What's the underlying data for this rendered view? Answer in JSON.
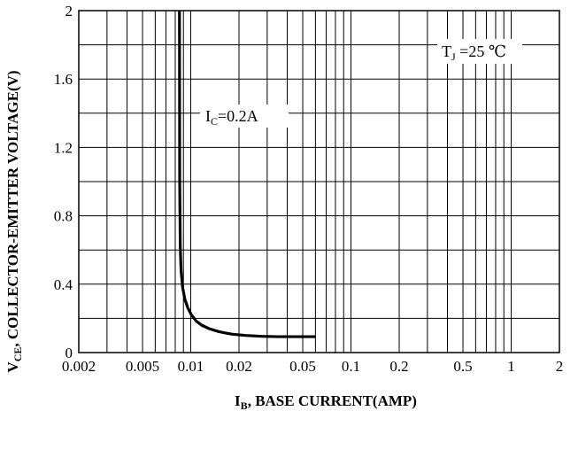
{
  "chart_data": {
    "type": "line",
    "title": "",
    "x_scale": "log",
    "y_scale": "linear",
    "xlim": [
      0.002,
      2
    ],
    "ylim": [
      0,
      2
    ],
    "grid": true,
    "legend": "none",
    "xlabel": {
      "main": "I",
      "sub": "B",
      "rest": ", BASE CURRENT(AMP)"
    },
    "ylabel": {
      "main": "V",
      "sub": "CE",
      "rest": ", COLLECTOR-EMITTER VOLTAGE(V)"
    },
    "x_ticks": [
      {
        "value": 0.002,
        "label": "0.002"
      },
      {
        "value": 0.005,
        "label": "0.005"
      },
      {
        "value": 0.01,
        "label": "0.01"
      },
      {
        "value": 0.02,
        "label": "0.02"
      },
      {
        "value": 0.05,
        "label": "0.05"
      },
      {
        "value": 0.1,
        "label": "0.1"
      },
      {
        "value": 0.2,
        "label": "0.2"
      },
      {
        "value": 0.5,
        "label": "0.5"
      },
      {
        "value": 1,
        "label": "1"
      },
      {
        "value": 2,
        "label": "2"
      }
    ],
    "y_ticks": [
      {
        "value": 0,
        "label": "0"
      },
      {
        "value": 0.4,
        "label": "0.4"
      },
      {
        "value": 0.8,
        "label": "0.8"
      },
      {
        "value": 1.2,
        "label": "1.2"
      },
      {
        "value": 1.6,
        "label": "1.6"
      },
      {
        "value": 2,
        "label": "2"
      }
    ],
    "x_minor_grid": [
      0.003,
      0.004,
      0.006,
      0.007,
      0.008,
      0.009,
      0.03,
      0.04,
      0.06,
      0.07,
      0.08,
      0.09,
      0.3,
      0.4,
      0.6,
      0.7,
      0.8,
      0.9
    ],
    "y_minor_grid": [
      0.2,
      0.6,
      1.0,
      1.4,
      1.8
    ],
    "series": [
      {
        "label": {
          "main": "I",
          "sub": "C",
          "rest": "=0.2A"
        },
        "color": "#000000",
        "x": [
          0.0085,
          0.00853,
          0.0086,
          0.0087,
          0.0089,
          0.0092,
          0.0096,
          0.0101,
          0.0108,
          0.0117,
          0.013,
          0.015,
          0.018,
          0.022,
          0.028,
          0.035,
          0.045,
          0.06
        ],
        "y": [
          2.0,
          1.0,
          0.62,
          0.48,
          0.38,
          0.31,
          0.26,
          0.22,
          0.185,
          0.16,
          0.14,
          0.122,
          0.108,
          0.1,
          0.095,
          0.093,
          0.093,
          0.093
        ]
      }
    ],
    "condition": {
      "main": "T",
      "sub": "J",
      "rest": " =25 ℃"
    }
  }
}
